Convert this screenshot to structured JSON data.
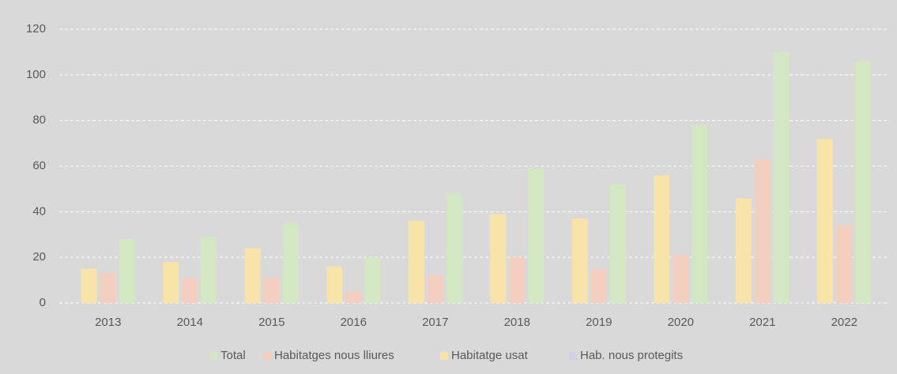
{
  "chart_data": {
    "type": "bar",
    "categories": [
      "2013",
      "2014",
      "2015",
      "2016",
      "2017",
      "2018",
      "2019",
      "2020",
      "2021",
      "2022"
    ],
    "series": [
      {
        "name": "Total",
        "color": "#d2e7c2",
        "values": [
          28,
          29,
          35,
          20,
          48,
          59,
          52,
          78,
          110,
          106
        ]
      },
      {
        "name": "Habitatges nous lliures",
        "color": "#f4cfbf",
        "values": [
          13,
          11,
          11,
          5,
          12,
          20,
          15,
          21,
          63,
          34
        ]
      },
      {
        "name": "Habitatge usat",
        "color": "#f8e4a9",
        "values": [
          15,
          18,
          24,
          16,
          36,
          39,
          37,
          56,
          46,
          72
        ]
      },
      {
        "name": "Hab. nous protegits",
        "color": "#d3cfe6",
        "values": [
          null,
          null,
          null,
          null,
          null,
          null,
          null,
          null,
          null,
          null
        ]
      }
    ],
    "ylim": [
      0,
      120
    ],
    "yticks": [
      0,
      20,
      40,
      60,
      80,
      100,
      120
    ],
    "grid": true,
    "legend": "bottom"
  }
}
